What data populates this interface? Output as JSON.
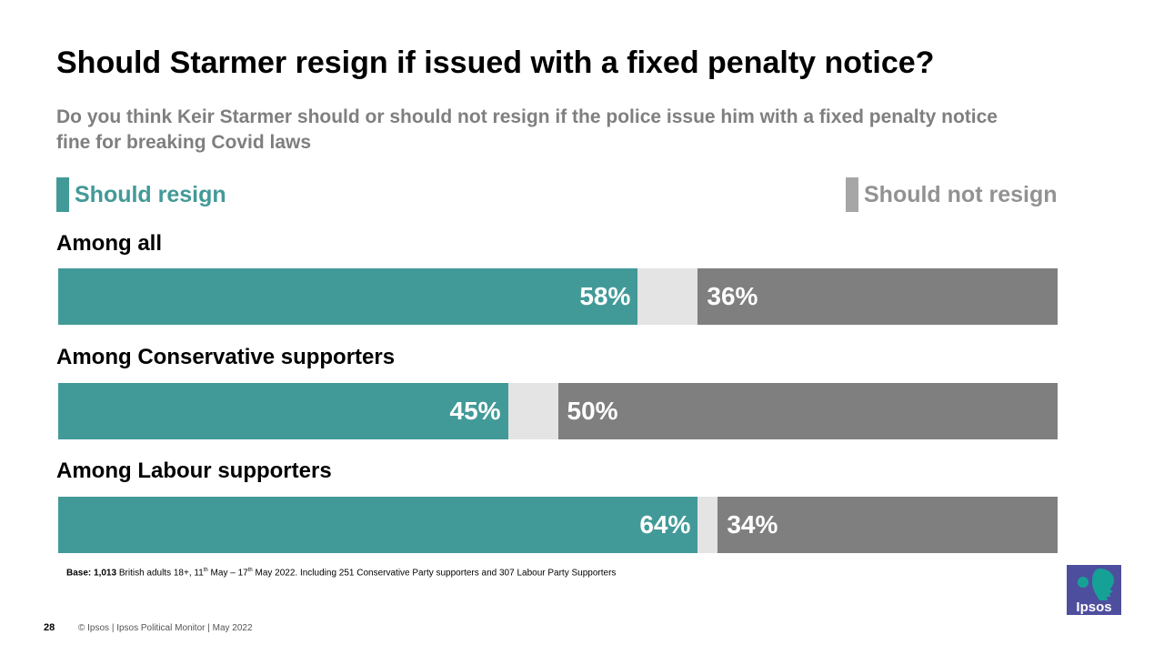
{
  "title": "Should Starmer resign if issued with a fixed penalty notice?",
  "subtitle": "Do you think Keir Starmer should or should not resign if the police issue him with a fixed penalty notice fine for breaking Covid laws",
  "colors": {
    "should_resign": "#429a98",
    "should_not_resign": "#7f7f7f",
    "dont_know": "#e4e4e4"
  },
  "chart_data": {
    "type": "bar",
    "orientation": "horizontal",
    "stacked": true,
    "xlim": [
      0,
      100
    ],
    "legend": [
      "Should resign",
      "Should not resign"
    ],
    "categories": [
      "Among all",
      "Among Conservative supporters",
      "Among Labour supporters"
    ],
    "series": [
      {
        "name": "Should resign",
        "values": [
          58,
          45,
          64
        ],
        "labels": [
          "58%",
          "45%",
          "64%"
        ]
      },
      {
        "name": "Should not resign",
        "values": [
          36,
          50,
          34
        ],
        "labels": [
          "36%",
          "50%",
          "34%"
        ]
      }
    ]
  },
  "base_note": {
    "label": "Base:",
    "count": "1,013",
    "text_1": " British adults 18+, 11",
    "sup_1": "th",
    "text_2": " May – 17",
    "sup_2": "th",
    "text_3": " May 2022. Including 251 Conservative Party supporters and 307 Labour Party Supporters"
  },
  "page_number": "28",
  "footer": "© Ipsos | Ipsos Political Monitor | May 2022",
  "logo": {
    "text": "Ipsos",
    "color": "#4e4e9e",
    "accent": "#16a196"
  }
}
